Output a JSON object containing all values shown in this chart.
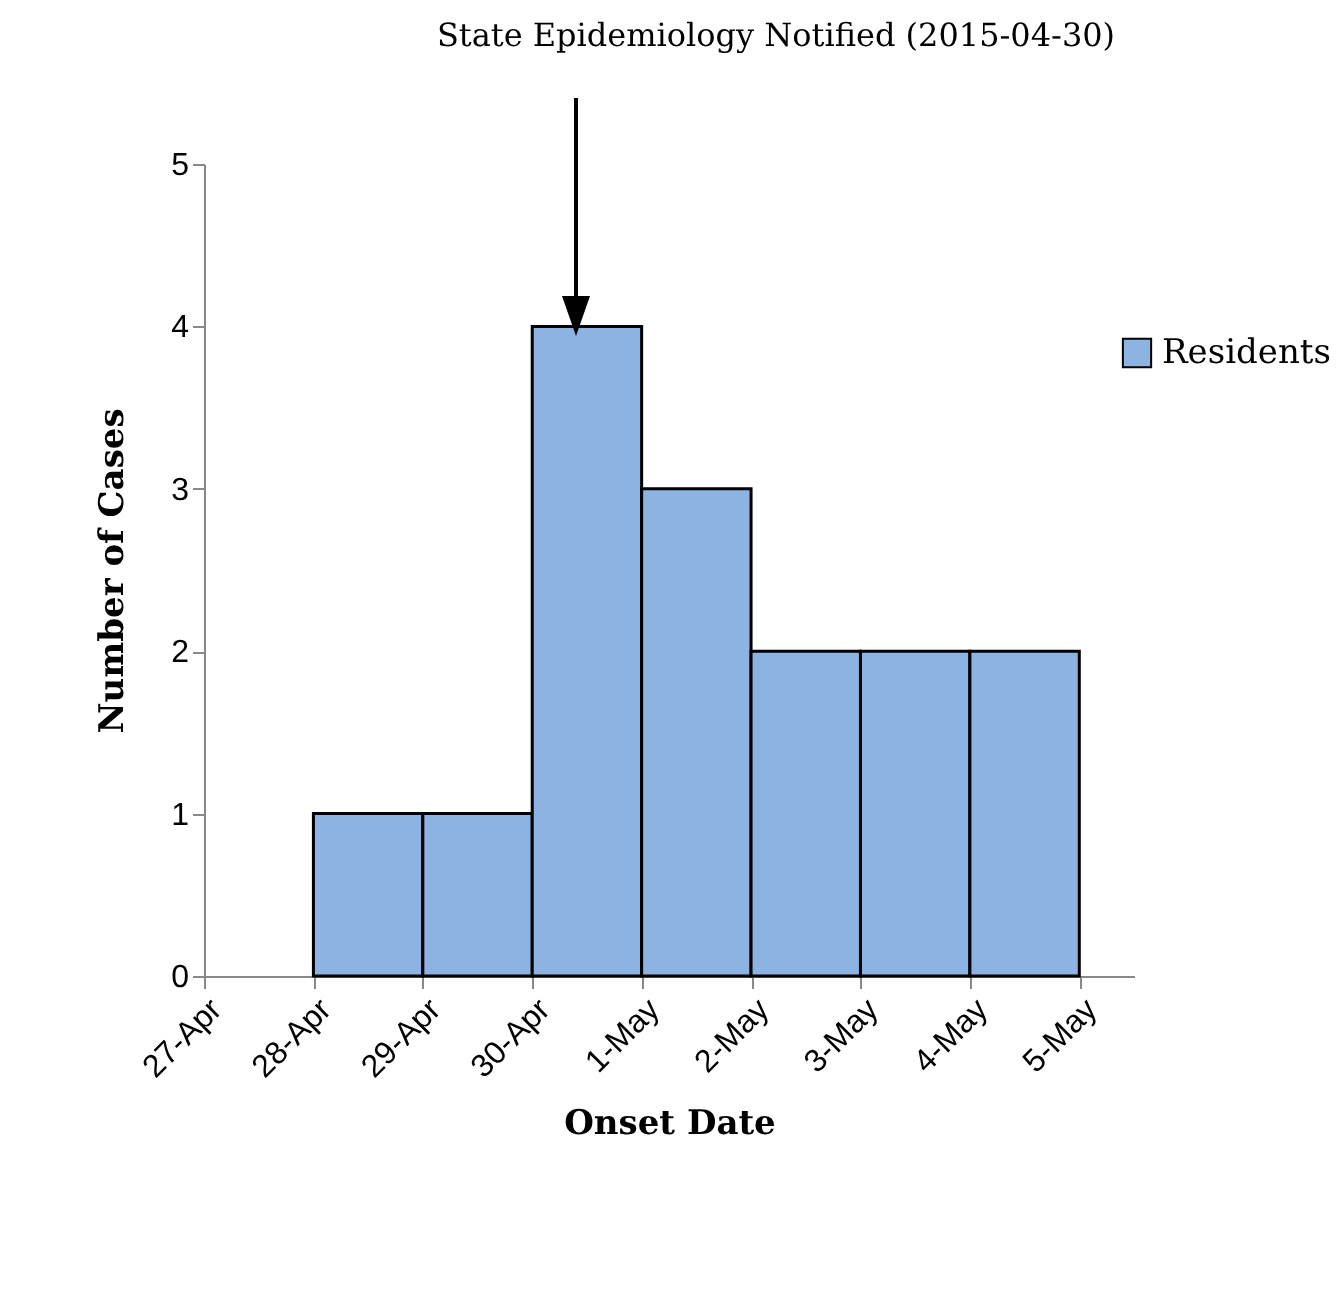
{
  "chart_data": {
    "type": "histogram",
    "xlabel": "Onset Date",
    "ylabel": "Number of Cases",
    "bins": [
      "--04-27",
      "--04-28",
      "--04-29",
      "--04-30",
      "--05-01",
      "--05-02",
      "--05-03",
      "--05-04",
      "--05-05"
    ],
    "series": [
      {
        "name": "Residents",
        "color": "#8db3e2",
        "values": [
          0,
          1,
          1,
          4,
          3,
          2,
          2,
          2
        ]
      }
    ],
    "xlim": [
      "--04-27",
      "--05-05T12:00"
    ],
    "xticks": [
      {
        "value": "--04-27",
        "label": "27-Apr"
      },
      {
        "value": "--04-28",
        "label": "28-Apr"
      },
      {
        "value": "--04-29",
        "label": "29-Apr"
      },
      {
        "value": "--04-30",
        "label": "30-Apr"
      },
      {
        "value": "--05-01",
        "label": "1-May"
      },
      {
        "value": "--05-02",
        "label": "2-May"
      },
      {
        "value": "--05-03",
        "label": "3-May"
      },
      {
        "value": "--05-04",
        "label": "4-May"
      },
      {
        "value": "--05-05",
        "label": "5-May"
      }
    ],
    "ylim": [
      0,
      5
    ],
    "yticks": [
      0,
      1,
      2,
      3,
      4,
      5
    ],
    "annotations": [
      "State Epidemiology Notified (2015-04-30)"
    ],
    "legend": "right",
    "grid": false
  }
}
